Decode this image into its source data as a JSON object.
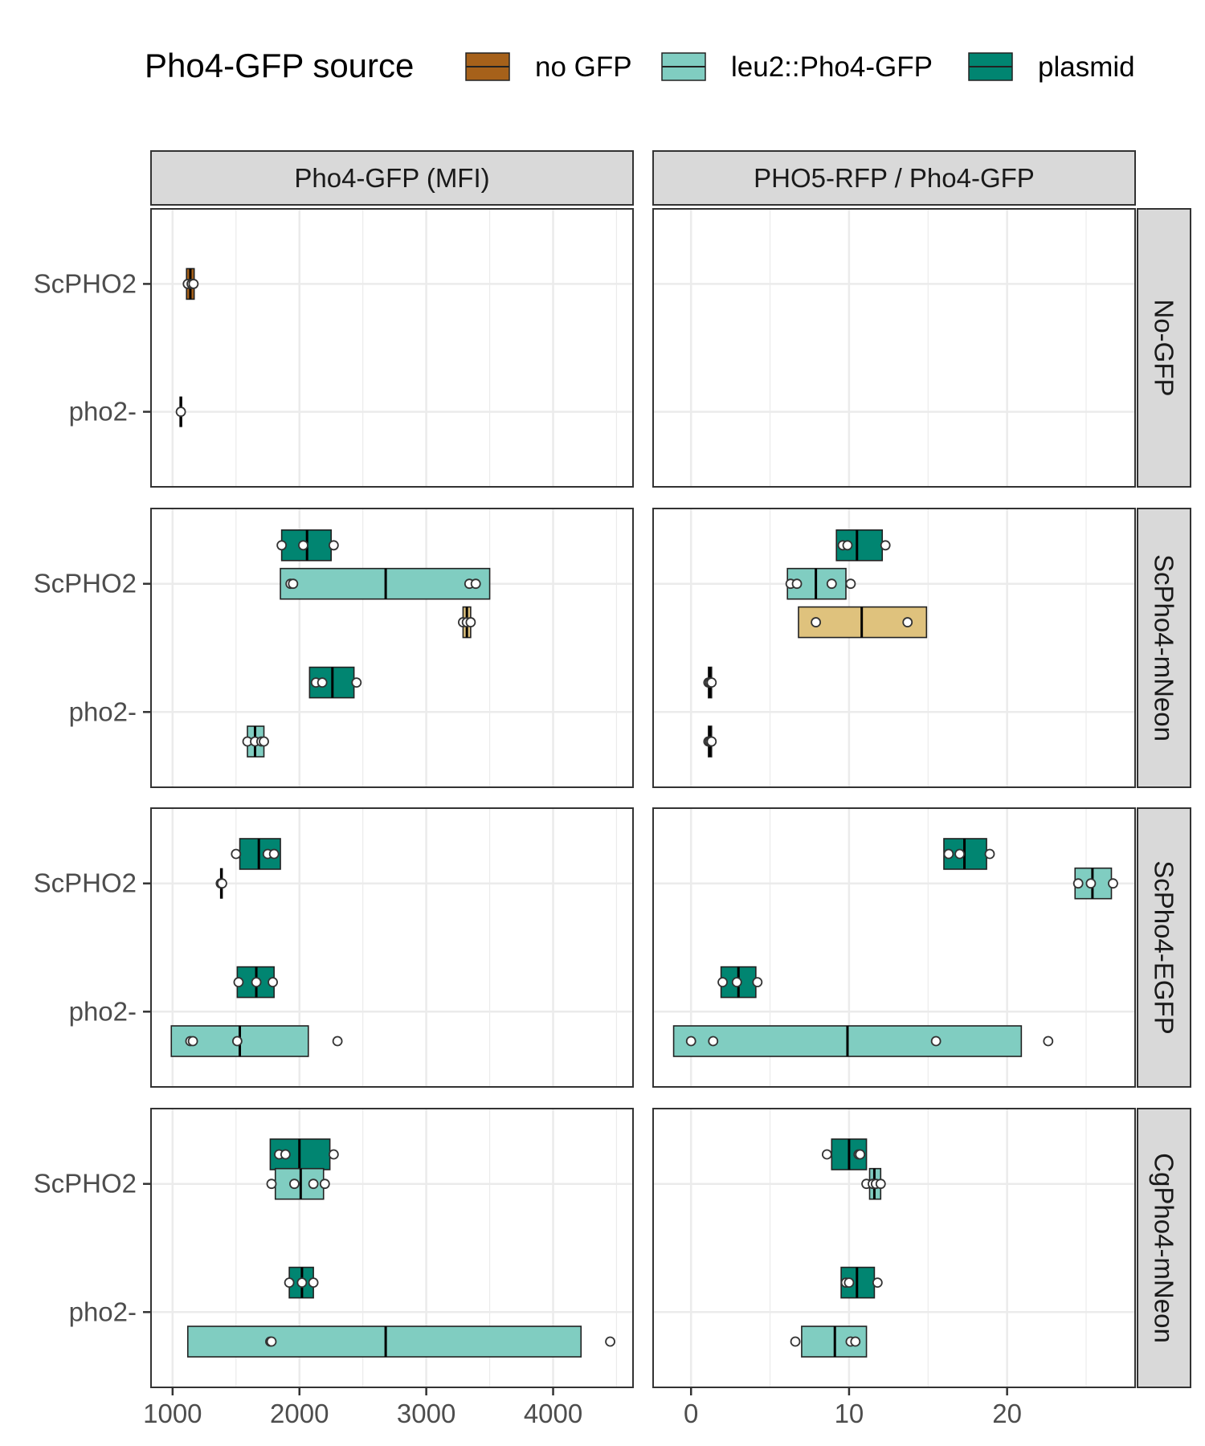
{
  "chart_data": {
    "type": "boxplot",
    "legend": {
      "title": "Pho4-GFP source",
      "placement": "top",
      "entries": [
        {
          "key": "no",
          "label": "no GFP",
          "color": "#A6611A"
        },
        {
          "key": "leu2",
          "label": "leu2::Pho4-GFP",
          "color": "#80CDC1"
        },
        {
          "key": "plasmid",
          "label": "plasmid",
          "color": "#018571"
        }
      ]
    },
    "extra_colors": {
      "unlabeled": "#DFC27D"
    },
    "columns": [
      {
        "title": "Pho4-GFP (MFI)",
        "xlim": [
          830,
          4630
        ],
        "ticks": [
          1000,
          2000,
          3000,
          4000
        ],
        "minor": [
          1500,
          2500,
          3500,
          4500
        ]
      },
      {
        "title": "PHO5-RFP / Pho4-GFP",
        "xlim": [
          -2.4,
          28.1
        ],
        "ticks": [
          0,
          10,
          20
        ],
        "minor": [
          5,
          15,
          25
        ]
      }
    ],
    "rows": [
      {
        "title": "No-GFP",
        "y_ticks": [
          "ScPHO2",
          "pho2-"
        ]
      },
      {
        "title": "ScPho4-mNeon",
        "y_ticks": [
          "ScPHO2",
          "pho2-"
        ]
      },
      {
        "title": "ScPho4-EGFP",
        "y_ticks": [
          "ScPHO2",
          "pho2-"
        ]
      },
      {
        "title": "CgPho4-mNeon",
        "y_ticks": [
          "ScPHO2",
          "pho2-"
        ]
      }
    ],
    "grid": true,
    "boxes": [
      {
        "row": 0,
        "col": 0,
        "y": "ScPHO2",
        "offset": 0,
        "fill": "no",
        "q1": 1110,
        "median": 1140,
        "q3": 1170,
        "points": [
          1120,
          1150,
          1165
        ]
      },
      {
        "row": 0,
        "col": 0,
        "y": "pho2-",
        "offset": 0,
        "fill": "no",
        "q1": 1065,
        "median": 1065,
        "q3": 1065,
        "points": [
          1065
        ]
      },
      {
        "row": 1,
        "col": 0,
        "y": "ScPHO2",
        "offset": 0.3,
        "fill": "plasmid",
        "q1": 1860,
        "median": 2060,
        "q3": 2250,
        "points": [
          1860,
          2030,
          2270
        ]
      },
      {
        "row": 1,
        "col": 0,
        "y": "ScPHO2",
        "offset": 0,
        "fill": "leu2",
        "q1": 1850,
        "median": 2680,
        "q3": 3500,
        "points": [
          1930,
          1950,
          3340,
          3390
        ]
      },
      {
        "row": 1,
        "col": 0,
        "y": "ScPHO2",
        "offset": -0.3,
        "fill": "unlabeled",
        "q1": 3290,
        "median": 3320,
        "q3": 3350,
        "points": [
          3290,
          3320,
          3350
        ]
      },
      {
        "row": 1,
        "col": 0,
        "y": "pho2-",
        "offset": 0.23,
        "fill": "plasmid",
        "q1": 2080,
        "median": 2260,
        "q3": 2430,
        "points": [
          2130,
          2180,
          2450
        ]
      },
      {
        "row": 1,
        "col": 0,
        "y": "pho2-",
        "offset": -0.23,
        "fill": "leu2",
        "q1": 1590,
        "median": 1650,
        "q3": 1720,
        "points": [
          1590,
          1650,
          1700,
          1720
        ]
      },
      {
        "row": 1,
        "col": 1,
        "y": "ScPHO2",
        "offset": 0.3,
        "fill": "plasmid",
        "q1": 9.2,
        "median": 10.5,
        "q3": 12.1,
        "points": [
          9.6,
          9.9,
          12.3
        ]
      },
      {
        "row": 1,
        "col": 1,
        "y": "ScPHO2",
        "offset": 0,
        "fill": "leu2",
        "q1": 6.1,
        "median": 7.9,
        "q3": 9.8,
        "points": [
          6.3,
          6.7,
          8.9,
          10.1
        ]
      },
      {
        "row": 1,
        "col": 1,
        "y": "ScPHO2",
        "offset": -0.3,
        "fill": "unlabeled",
        "q1": 6.8,
        "median": 10.8,
        "q3": 14.9,
        "points": [
          7.9,
          13.7
        ]
      },
      {
        "row": 1,
        "col": 1,
        "y": "pho2-",
        "offset": 0.23,
        "fill": "plasmid",
        "q1": 1.1,
        "median": 1.2,
        "q3": 1.3,
        "points": [
          1.1,
          1.2,
          1.3
        ]
      },
      {
        "row": 1,
        "col": 1,
        "y": "pho2-",
        "offset": -0.23,
        "fill": "leu2",
        "q1": 1.1,
        "median": 1.2,
        "q3": 1.3,
        "points": [
          1.1,
          1.2,
          1.3
        ]
      },
      {
        "row": 2,
        "col": 0,
        "y": "ScPHO2",
        "offset": 0.23,
        "fill": "plasmid",
        "q1": 1530,
        "median": 1680,
        "q3": 1850,
        "points": [
          1500,
          1750,
          1800
        ]
      },
      {
        "row": 2,
        "col": 0,
        "y": "ScPHO2",
        "offset": 0,
        "fill": "plasmid",
        "q1": 1385,
        "median": 1385,
        "q3": 1385,
        "points": [
          1380,
          1390
        ]
      },
      {
        "row": 2,
        "col": 0,
        "y": "pho2-",
        "offset": 0.23,
        "fill": "plasmid",
        "q1": 1510,
        "median": 1660,
        "q3": 1800,
        "points": [
          1520,
          1660,
          1790
        ]
      },
      {
        "row": 2,
        "col": 0,
        "y": "pho2-",
        "offset": -0.23,
        "fill": "leu2",
        "q1": 990,
        "median": 1530,
        "q3": 2070,
        "points": [
          1140,
          1160,
          1510,
          2300
        ]
      },
      {
        "row": 2,
        "col": 1,
        "y": "ScPHO2",
        "offset": 0.23,
        "fill": "plasmid",
        "q1": 16.0,
        "median": 17.3,
        "q3": 18.7,
        "points": [
          16.3,
          17.0,
          18.9
        ]
      },
      {
        "row": 2,
        "col": 1,
        "y": "ScPHO2",
        "offset": 0,
        "fill": "leu2",
        "q1": 24.3,
        "median": 25.4,
        "q3": 26.6,
        "points": [
          24.5,
          25.3,
          26.7
        ]
      },
      {
        "row": 2,
        "col": 1,
        "y": "pho2-",
        "offset": 0.23,
        "fill": "plasmid",
        "q1": 1.9,
        "median": 3.0,
        "q3": 4.1,
        "points": [
          2.0,
          2.9,
          4.2
        ]
      },
      {
        "row": 2,
        "col": 1,
        "y": "pho2-",
        "offset": -0.23,
        "fill": "leu2",
        "q1": -1.1,
        "median": 9.9,
        "q3": 20.9,
        "points": [
          0.0,
          1.4,
          15.5,
          22.6
        ]
      },
      {
        "row": 3,
        "col": 0,
        "y": "ScPHO2",
        "offset": 0.23,
        "fill": "plasmid",
        "q1": 1770,
        "median": 2000,
        "q3": 2240,
        "points": [
          1840,
          1890,
          2270
        ]
      },
      {
        "row": 3,
        "col": 0,
        "y": "ScPHO2",
        "offset": 0,
        "fill": "leu2",
        "q1": 1810,
        "median": 2010,
        "q3": 2190,
        "points": [
          1780,
          1960,
          2110,
          2200
        ]
      },
      {
        "row": 3,
        "col": 0,
        "y": "pho2-",
        "offset": 0.23,
        "fill": "plasmid",
        "q1": 1920,
        "median": 2020,
        "q3": 2110,
        "points": [
          1920,
          2020,
          2110
        ]
      },
      {
        "row": 3,
        "col": 0,
        "y": "pho2-",
        "offset": -0.23,
        "fill": "leu2",
        "q1": 1120,
        "median": 2680,
        "q3": 4220,
        "points": [
          1770,
          1780,
          4450
        ]
      },
      {
        "row": 3,
        "col": 1,
        "y": "ScPHO2",
        "offset": 0.23,
        "fill": "plasmid",
        "q1": 8.9,
        "median": 10.0,
        "q3": 11.1,
        "points": [
          8.6,
          10.6,
          10.7
        ]
      },
      {
        "row": 3,
        "col": 1,
        "y": "ScPHO2",
        "offset": 0,
        "fill": "leu2",
        "q1": 11.3,
        "median": 11.6,
        "q3": 12.0,
        "points": [
          11.1,
          11.5,
          11.7,
          12.0
        ]
      },
      {
        "row": 3,
        "col": 1,
        "y": "pho2-",
        "offset": 0.23,
        "fill": "plasmid",
        "q1": 9.5,
        "median": 10.5,
        "q3": 11.6,
        "points": [
          9.8,
          10.0,
          11.8
        ]
      },
      {
        "row": 3,
        "col": 1,
        "y": "pho2-",
        "offset": -0.23,
        "fill": "leu2",
        "q1": 7.0,
        "median": 9.1,
        "q3": 11.1,
        "points": [
          6.6,
          10.1,
          10.4
        ]
      }
    ]
  }
}
